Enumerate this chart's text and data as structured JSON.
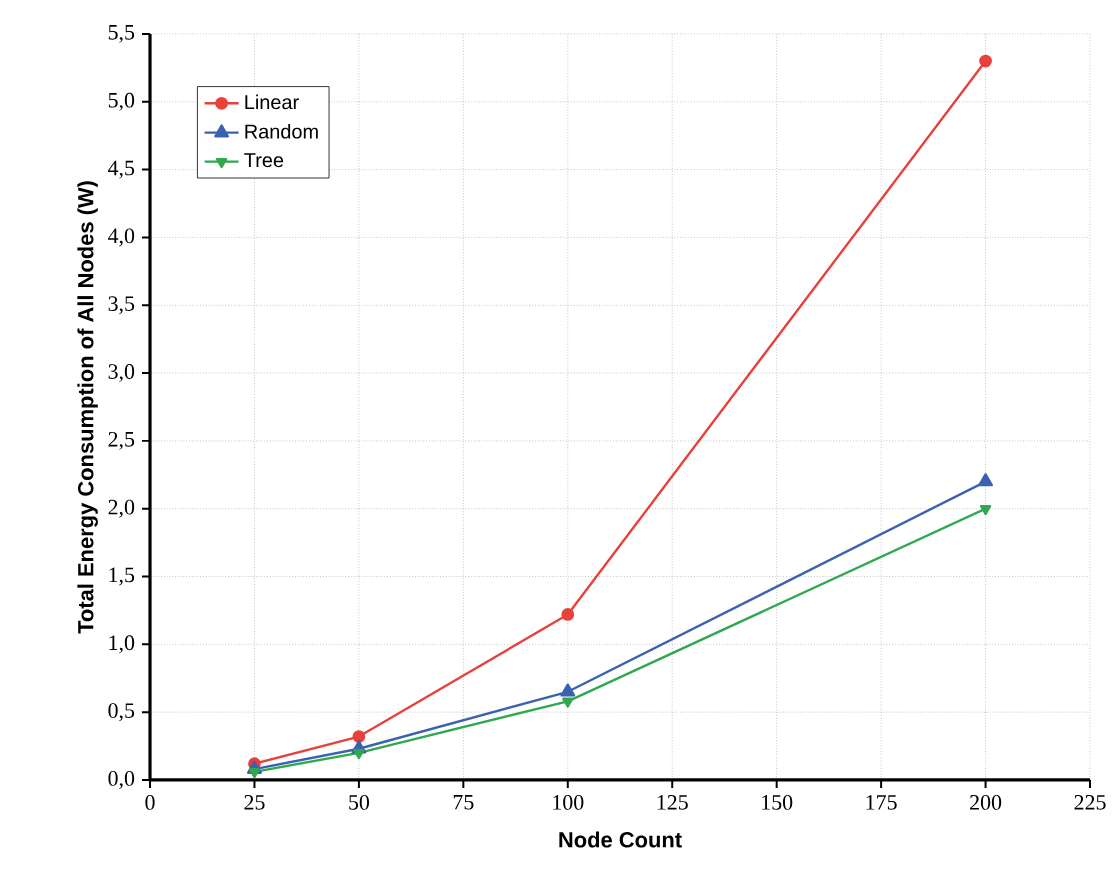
{
  "chart_data": {
    "type": "line",
    "xlabel": "Node Count",
    "ylabel": "Total Energy Consumption of All Nodes (W)",
    "x": [
      25,
      50,
      100,
      200
    ],
    "series": [
      {
        "name": "Linear",
        "color": "#e8413c",
        "marker": "circle",
        "values": [
          0.12,
          0.32,
          1.22,
          5.3
        ]
      },
      {
        "name": "Random",
        "color": "#3a62b0",
        "marker": "triangle",
        "values": [
          0.08,
          0.23,
          0.65,
          2.2
        ]
      },
      {
        "name": "Tree",
        "color": "#2fa84f",
        "marker": "triangle down",
        "values": [
          0.06,
          0.2,
          0.58,
          2.0
        ]
      }
    ],
    "xlim": [
      0,
      225
    ],
    "xticks": [
      0,
      25,
      50,
      75,
      100,
      125,
      150,
      175,
      200,
      225
    ],
    "ylim": [
      0,
      5.5
    ],
    "yticks": [
      {
        "value": 0,
        "label": "0,0"
      },
      {
        "value": 0.5,
        "label": "0,5"
      },
      {
        "value": 1,
        "label": "1,0"
      },
      {
        "value": 1.5,
        "label": "1,5"
      },
      {
        "value": 2,
        "label": "2,0"
      },
      {
        "value": 2.5,
        "label": "2,5"
      },
      {
        "value": 3,
        "label": "3,0"
      },
      {
        "value": 3.5,
        "label": "3,5"
      },
      {
        "value": 4,
        "label": "4,0"
      },
      {
        "value": 4.5,
        "label": "4,5"
      },
      {
        "value": 5,
        "label": "5,0"
      },
      {
        "value": 5.5,
        "label": "5,5"
      }
    ],
    "grid": true,
    "legend": "top left",
    "line_style": "solid"
  }
}
